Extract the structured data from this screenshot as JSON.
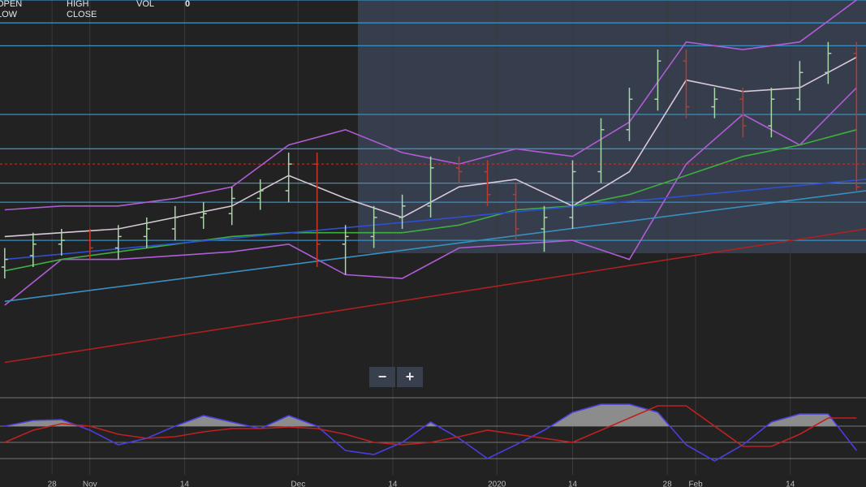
{
  "header": {
    "open": "OPEN",
    "high": "HIGH",
    "vol": "VOL",
    "vol_value": "0",
    "low": "LOW",
    "close": "CLOSE"
  },
  "zoom": {
    "minus": "−",
    "plus": "+"
  },
  "chart_data": [
    {
      "type": "ohlc",
      "xlim": [
        -0.5,
        91
      ],
      "ylim": [
        0,
        100
      ],
      "grid": true,
      "xticks": [
        {
          "value": 5,
          "label": "28"
        },
        {
          "value": 9,
          "label": "Nov"
        },
        {
          "value": 19,
          "label": "14"
        },
        {
          "value": 31,
          "label": "Dec"
        },
        {
          "value": 41,
          "label": "14"
        },
        {
          "value": 52,
          "label": "2020"
        },
        {
          "value": 60,
          "label": "14"
        },
        {
          "value": 70,
          "label": "28"
        },
        {
          "value": 73,
          "label": "Feb"
        },
        {
          "value": 83,
          "label": "14"
        }
      ],
      "up_color": "#a9d6a9",
      "down_color": "#c0392b",
      "bars": {
        "x": [
          0,
          3,
          6,
          9,
          12,
          15,
          18,
          21,
          24,
          27,
          30,
          33,
          36,
          39,
          42,
          45,
          48,
          51,
          54,
          57,
          60,
          63,
          66,
          69,
          72,
          75,
          78,
          81,
          84,
          87,
          90
        ],
        "open": [
          30,
          33,
          36,
          37,
          35,
          38,
          40,
          43,
          44,
          48,
          50,
          57,
          36,
          38,
          43,
          46,
          56,
          55,
          49,
          40,
          43,
          55,
          66,
          74,
          84,
          72,
          74,
          67,
          74,
          81,
          86
        ],
        "high": [
          35,
          39,
          40,
          40,
          41,
          43,
          46,
          47,
          51,
          53,
          60,
          60,
          41,
          46,
          49,
          59,
          59,
          58,
          52,
          46,
          58,
          69,
          77,
          87,
          87,
          77,
          77,
          77,
          84,
          89,
          89
        ],
        "low": [
          27,
          30,
          33,
          32,
          32,
          35,
          37,
          40,
          41,
          45,
          47,
          30,
          28,
          35,
          40,
          43,
          52,
          46,
          37,
          34,
          40,
          52,
          63,
          71,
          69,
          69,
          64,
          64,
          71,
          78,
          50
        ],
        "close": [
          32,
          36,
          37,
          35,
          38,
          40,
          43,
          44,
          48,
          50,
          57,
          36,
          38,
          43,
          46,
          56,
          55,
          49,
          40,
          43,
          55,
          66,
          74,
          84,
          72,
          74,
          67,
          74,
          81,
          86,
          51
        ]
      },
      "levels": [
        100,
        94,
        88,
        70,
        61,
        52,
        47,
        37
      ],
      "level_color": "#3a8fc0",
      "dashed_level": 57,
      "dashed_color": "#c0392b",
      "series": [
        {
          "color": "#b05cd6",
          "x": [
            0,
            6,
            12,
            18,
            24,
            30,
            36,
            42,
            48,
            54,
            60,
            66,
            72,
            78,
            84,
            90
          ],
          "values": [
            45,
            46,
            46,
            48,
            51,
            62,
            66,
            60,
            57,
            61,
            59,
            68,
            89,
            87,
            89,
            100
          ]
        },
        {
          "color": "#b05cd6",
          "x": [
            0,
            6,
            12,
            18,
            24,
            30,
            36,
            42,
            48,
            54,
            60,
            66,
            72,
            78,
            84,
            90
          ],
          "values": [
            20,
            32,
            32,
            33,
            34,
            36,
            28,
            27,
            35,
            36,
            37,
            32,
            57,
            70,
            62,
            77
          ]
        },
        {
          "color": "#d8c8d8",
          "x": [
            0,
            6,
            12,
            18,
            24,
            30,
            36,
            42,
            48,
            54,
            60,
            66,
            72,
            78,
            84,
            90
          ],
          "values": [
            38,
            39,
            40,
            43,
            46,
            54,
            48,
            43,
            51,
            53,
            46,
            55,
            79,
            76,
            77,
            85
          ]
        },
        {
          "color": "#3fae3f",
          "x": [
            0,
            6,
            12,
            18,
            24,
            30,
            36,
            42,
            48,
            54,
            60,
            66,
            72,
            78,
            84,
            90
          ],
          "values": [
            29,
            32,
            34,
            36,
            38,
            39,
            39,
            39,
            41,
            45,
            46,
            49,
            54,
            59,
            62,
            66
          ]
        },
        {
          "color": "#2f4fd0",
          "x": [
            0,
            91
          ],
          "values": [
            32,
            53
          ]
        },
        {
          "color": "#3a8fc0",
          "x": [
            0,
            91
          ],
          "values": [
            21,
            50
          ]
        },
        {
          "color": "#b02020",
          "x": [
            0,
            91
          ],
          "values": [
            5,
            40
          ]
        }
      ]
    },
    {
      "type": "oscillator",
      "xlim": [
        -0.5,
        91
      ],
      "ylim": [
        -2,
        2.75
      ],
      "levels": [
        2.75,
        1,
        0,
        -1
      ],
      "level_color": "#777",
      "fill_color": "#8c8c8c",
      "fill_above": 1,
      "series": [
        {
          "color": "#4a3ee0",
          "x": [
            0,
            3,
            6,
            9,
            12,
            15,
            18,
            21,
            24,
            27,
            30,
            33,
            36,
            39,
            42,
            45,
            48,
            51,
            54,
            57,
            60,
            63,
            66,
            69,
            72,
            75,
            78,
            81,
            84,
            87,
            90
          ],
          "values": [
            1,
            1.35,
            1.4,
            0.75,
            -0.15,
            0.25,
            1,
            1.65,
            1.25,
            0.85,
            1.65,
            1,
            -0.5,
            -0.75,
            0,
            1.25,
            0.25,
            -1,
            -0.15,
            0.75,
            1.85,
            2.35,
            2.35,
            1.85,
            -0.15,
            -1.15,
            -0.15,
            1.25,
            1.75,
            1.75,
            -0.5
          ]
        },
        {
          "color": "#c02020",
          "x": [
            0,
            3,
            6,
            9,
            12,
            15,
            18,
            21,
            24,
            27,
            30,
            33,
            36,
            39,
            42,
            45,
            48,
            51,
            54,
            57,
            60,
            63,
            66,
            69,
            72,
            75,
            78,
            81,
            84,
            87,
            90
          ],
          "values": [
            0,
            0.75,
            1.15,
            1,
            0.5,
            0.25,
            0.35,
            0.65,
            0.85,
            0.85,
            0.95,
            0.85,
            0.5,
            0,
            -0.15,
            0,
            0.35,
            0.75,
            0.5,
            0.25,
            0,
            0.75,
            1.5,
            2.25,
            2.25,
            1,
            -0.25,
            -0.25,
            0.5,
            1.5,
            1.5
          ]
        }
      ]
    }
  ]
}
